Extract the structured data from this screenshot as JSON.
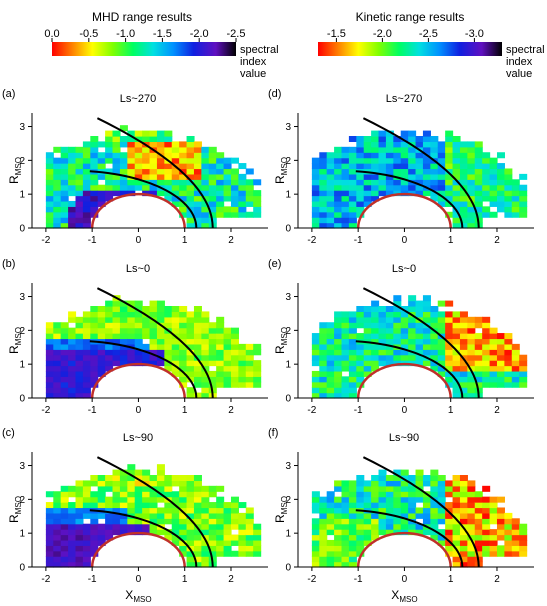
{
  "chart_data": [
    {
      "type": "heatmap",
      "label": "(a)",
      "title": "Ls~270",
      "xlabel": "X",
      "xlabel_sub": "MSO",
      "ylabel": "R",
      "ylabel_sub": "MSO",
      "xlim": [
        -2.3,
        2.8
      ],
      "ylim": [
        0,
        3.4
      ],
      "xticks": [
        "-2",
        "-1",
        "0",
        "1",
        "2"
      ],
      "yticks": [
        "0",
        "1",
        "2",
        "3"
      ],
      "colorbar": "mhd",
      "pattern": "mhd270",
      "seed": 11
    },
    {
      "type": "heatmap",
      "label": "(d)",
      "title": "Ls~270",
      "xlabel": "X",
      "xlabel_sub": "MSO",
      "ylabel": "R",
      "ylabel_sub": "MSO",
      "xlim": [
        -2.3,
        2.8
      ],
      "ylim": [
        0,
        3.4
      ],
      "xticks": [
        "-2",
        "-1",
        "0",
        "1",
        "2"
      ],
      "yticks": [
        "0",
        "1",
        "2",
        "3"
      ],
      "colorbar": "kinetic",
      "pattern": "kin270",
      "seed": 12
    },
    {
      "type": "heatmap",
      "label": "(b)",
      "title": "Ls~0",
      "xlabel": "X",
      "xlabel_sub": "MSO",
      "ylabel": "R",
      "ylabel_sub": "MSO",
      "xlim": [
        -2.3,
        2.8
      ],
      "ylim": [
        0,
        3.4
      ],
      "xticks": [
        "-2",
        "-1",
        "0",
        "1",
        "2"
      ],
      "yticks": [
        "0",
        "1",
        "2",
        "3"
      ],
      "colorbar": "mhd",
      "pattern": "mhd0",
      "seed": 21
    },
    {
      "type": "heatmap",
      "label": "(e)",
      "title": "Ls~0",
      "xlabel": "X",
      "xlabel_sub": "MSO",
      "ylabel": "R",
      "ylabel_sub": "MSO",
      "xlim": [
        -2.3,
        2.8
      ],
      "ylim": [
        0,
        3.4
      ],
      "xticks": [
        "-2",
        "-1",
        "0",
        "1",
        "2"
      ],
      "yticks": [
        "0",
        "1",
        "2",
        "3"
      ],
      "colorbar": "kinetic",
      "pattern": "kin0",
      "seed": 22
    },
    {
      "type": "heatmap",
      "label": "(c)",
      "title": "Ls~90",
      "xlabel": "X",
      "xlabel_sub": "MSO",
      "ylabel": "R",
      "ylabel_sub": "MSO",
      "xlim": [
        -2.3,
        2.8
      ],
      "ylim": [
        0,
        3.4
      ],
      "xticks": [
        "-2",
        "-1",
        "0",
        "1",
        "2"
      ],
      "yticks": [
        "0",
        "1",
        "2",
        "3"
      ],
      "colorbar": "mhd",
      "pattern": "mhd90",
      "seed": 31
    },
    {
      "type": "heatmap",
      "label": "(f)",
      "title": "Ls~90",
      "xlabel": "X",
      "xlabel_sub": "MSO",
      "ylabel": "R",
      "ylabel_sub": "MSO",
      "xlim": [
        -2.3,
        2.8
      ],
      "ylim": [
        0,
        3.4
      ],
      "xticks": [
        "-2",
        "-1",
        "0",
        "1",
        "2"
      ],
      "yticks": [
        "0",
        "1",
        "2",
        "3"
      ],
      "colorbar": "kinetic",
      "pattern": "kin90",
      "seed": 32
    }
  ],
  "colorbars": {
    "mhd": {
      "title": "MHD range results",
      "min": -2.5,
      "max": 0.0,
      "ticks": [
        "0.0",
        "-0.5",
        "-1.0",
        "-1.5",
        "-2.0",
        "-2.5"
      ],
      "tick_values": [
        0.0,
        -0.5,
        -1.0,
        -1.5,
        -2.0,
        -2.5
      ],
      "label": [
        "spectral",
        "index",
        "value"
      ]
    },
    "kinetic": {
      "title": "Kinetic range results",
      "min": -3.3,
      "max": -1.3,
      "ticks": [
        "-1.5",
        "-2.0",
        "-2.5",
        "-3.0"
      ],
      "tick_values": [
        -1.5,
        -2.0,
        -2.5,
        -3.0
      ],
      "label": [
        "spectral",
        "index",
        "value"
      ]
    }
  },
  "colors": {
    "planet": "#c0302a",
    "boundary": "#000000",
    "colormap": [
      "#ff0000",
      "#ff8000",
      "#ffff00",
      "#80ff00",
      "#00ff60",
      "#00e0e0",
      "#0090ff",
      "#1020e0",
      "#6010c0",
      "#000000"
    ]
  }
}
